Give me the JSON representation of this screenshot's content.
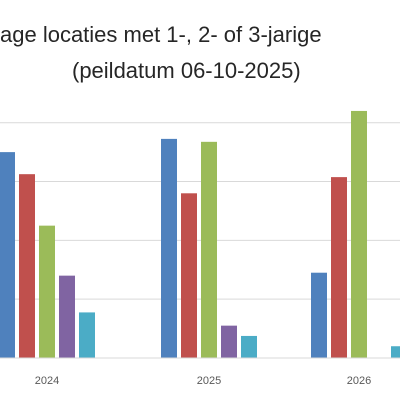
{
  "chart_data": {
    "type": "bar",
    "title_line_1": "age locaties met 1-, 2- of 3-jarige",
    "title_line_2": "(peildatum 06-10-2025)",
    "xlabel": "",
    "ylabel": "",
    "categories": [
      "2024",
      "2025",
      "2026"
    ],
    "series": [
      {
        "values": [
          140,
          149,
          58
        ],
        "color": "#4F81BD"
      },
      {
        "values": [
          125,
          112,
          123
        ],
        "color": "#C0504D"
      },
      {
        "values": [
          90,
          147,
          168
        ],
        "color": "#9BBB59"
      },
      {
        "values": [
          56,
          22,
          null
        ],
        "color": "#8064A2"
      },
      {
        "values": [
          31,
          15,
          8
        ],
        "color": "#4BACC6"
      }
    ],
    "ylim": [
      0,
      170
    ],
    "grid": true,
    "legend": "none"
  }
}
